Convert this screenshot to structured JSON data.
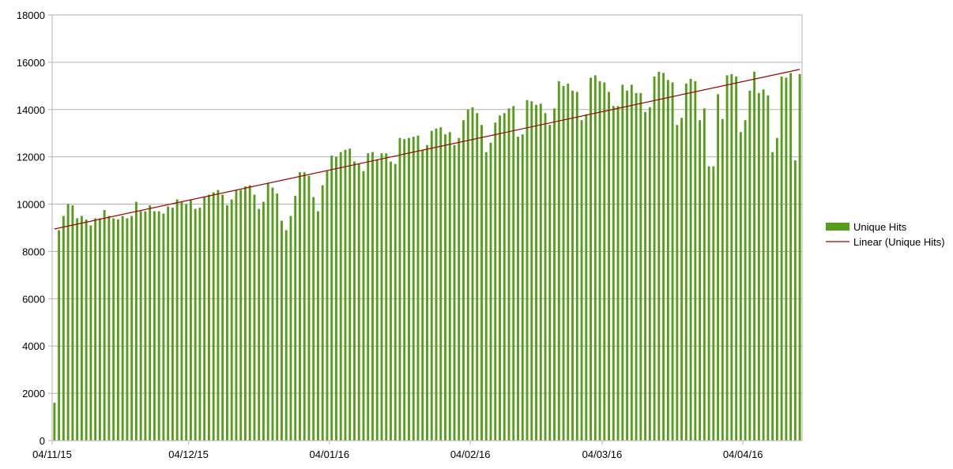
{
  "chart_data": {
    "type": "bar",
    "title": "",
    "xlabel": "",
    "ylabel": "",
    "ylim": [
      0,
      18000
    ],
    "y_ticks": [
      0,
      2000,
      4000,
      6000,
      8000,
      10000,
      12000,
      14000,
      16000,
      18000
    ],
    "x_tick_labels": [
      "04/11/15",
      "04/12/15",
      "04/01/16",
      "04/02/16",
      "04/03/16",
      "04/04/16"
    ],
    "x_tick_days": [
      0,
      30,
      61,
      92,
      121,
      152
    ],
    "grid": "horizontal",
    "legend_position": "right",
    "bar_color": "#579d1c",
    "trend_color": "#a00000",
    "series": [
      {
        "name": "Unique Hits",
        "values": [
          1600,
          8900,
          9500,
          10000,
          9950,
          9400,
          9500,
          9350,
          9100,
          9400,
          9400,
          9750,
          9500,
          9400,
          9350,
          9500,
          9400,
          9500,
          10100,
          9700,
          9700,
          9950,
          9700,
          9700,
          9600,
          9900,
          9850,
          10200,
          10100,
          10000,
          10200,
          9800,
          9850,
          10300,
          10400,
          10500,
          10600,
          10400,
          9950,
          10200,
          10600,
          10600,
          10750,
          10800,
          10400,
          9800,
          10100,
          10900,
          10700,
          10450,
          9300,
          8900,
          9500,
          10350,
          11350,
          11350,
          11200,
          10300,
          9700,
          10800,
          11400,
          12050,
          12000,
          12200,
          12300,
          12350,
          11800,
          11700,
          11400,
          12150,
          12200,
          11900,
          12150,
          12150,
          11800,
          11700,
          12800,
          12750,
          12800,
          12850,
          12900,
          12300,
          12500,
          13100,
          13200,
          13250,
          12950,
          13050,
          12500,
          12800,
          13550,
          14000,
          14100,
          13850,
          13350,
          12200,
          12600,
          13450,
          13750,
          13850,
          14050,
          14150,
          12850,
          12950,
          14400,
          14350,
          14200,
          14250,
          13850,
          13350,
          14050,
          15200,
          15000,
          15100,
          14800,
          14750,
          13550,
          13800,
          15350,
          15450,
          15200,
          15150,
          14750,
          14150,
          14150,
          15050,
          14800,
          15050,
          14700,
          14700,
          13900,
          14100,
          15400,
          15600,
          15550,
          15250,
          15150,
          13350,
          13650,
          15100,
          15300,
          15200,
          13550,
          14050,
          11600,
          11600,
          14650,
          13600,
          15450,
          15500,
          15400,
          13050,
          13550,
          14800,
          15600,
          14700,
          14850,
          14600,
          12200,
          12800,
          15400,
          15350,
          15550,
          11850,
          15500
        ]
      }
    ],
    "trendline": {
      "name": "Linear (Unique Hits)",
      "start_value": 8950,
      "end_value": 15700
    }
  }
}
